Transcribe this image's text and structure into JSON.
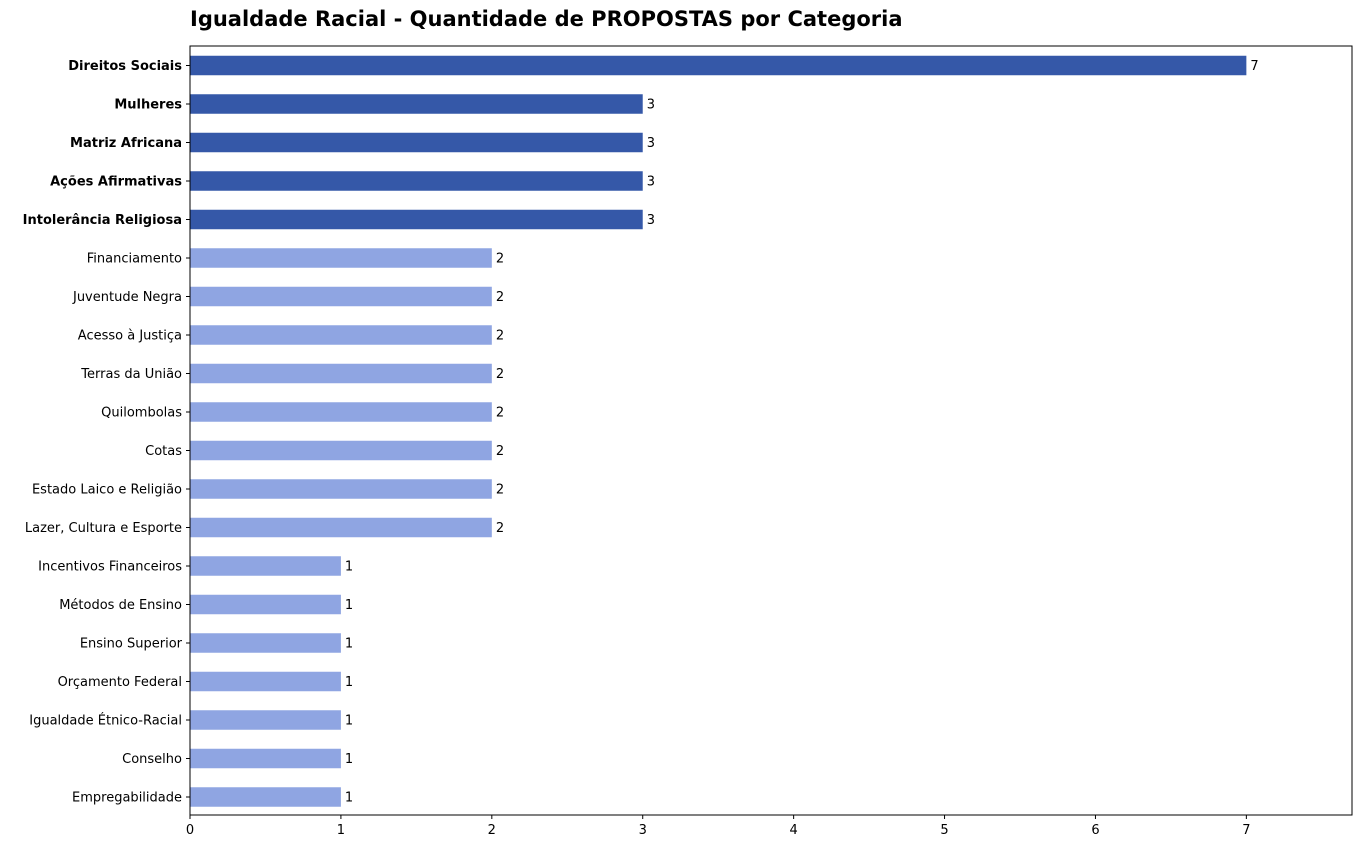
{
  "chart_data": {
    "type": "bar",
    "orientation": "horizontal",
    "title": "Igualdade Racial - Quantidade de PROPOSTAS por Categoria",
    "xlabel": "",
    "ylabel": "",
    "xlim": [
      0,
      7.7
    ],
    "xticks": [
      "0",
      "1",
      "2",
      "3",
      "4",
      "5",
      "6",
      "7"
    ],
    "grid": false,
    "colors": {
      "highlight": "#3558a8",
      "normal": "#8fa5e2"
    },
    "categories": [
      "Direitos Sociais",
      "Mulheres",
      "Matriz Africana",
      "Ações Afirmativas",
      "Intolerância Religiosa",
      "Financiamento",
      "Juventude Negra",
      "Acesso à Justiça",
      "Terras da União",
      "Quilombolas",
      "Cotas",
      "Estado Laico e Religião",
      "Lazer, Cultura e Esporte",
      "Incentivos Financeiros",
      "Métodos de Ensino",
      "Ensino Superior",
      "Orçamento Federal",
      "Igualdade Étnico-Racial",
      "Conselho",
      "Empregabilidade"
    ],
    "values": [
      7,
      3,
      3,
      3,
      3,
      2,
      2,
      2,
      2,
      2,
      2,
      2,
      2,
      1,
      1,
      1,
      1,
      1,
      1,
      1
    ],
    "highlighted": [
      true,
      true,
      true,
      true,
      true,
      false,
      false,
      false,
      false,
      false,
      false,
      false,
      false,
      false,
      false,
      false,
      false,
      false,
      false,
      false
    ]
  }
}
